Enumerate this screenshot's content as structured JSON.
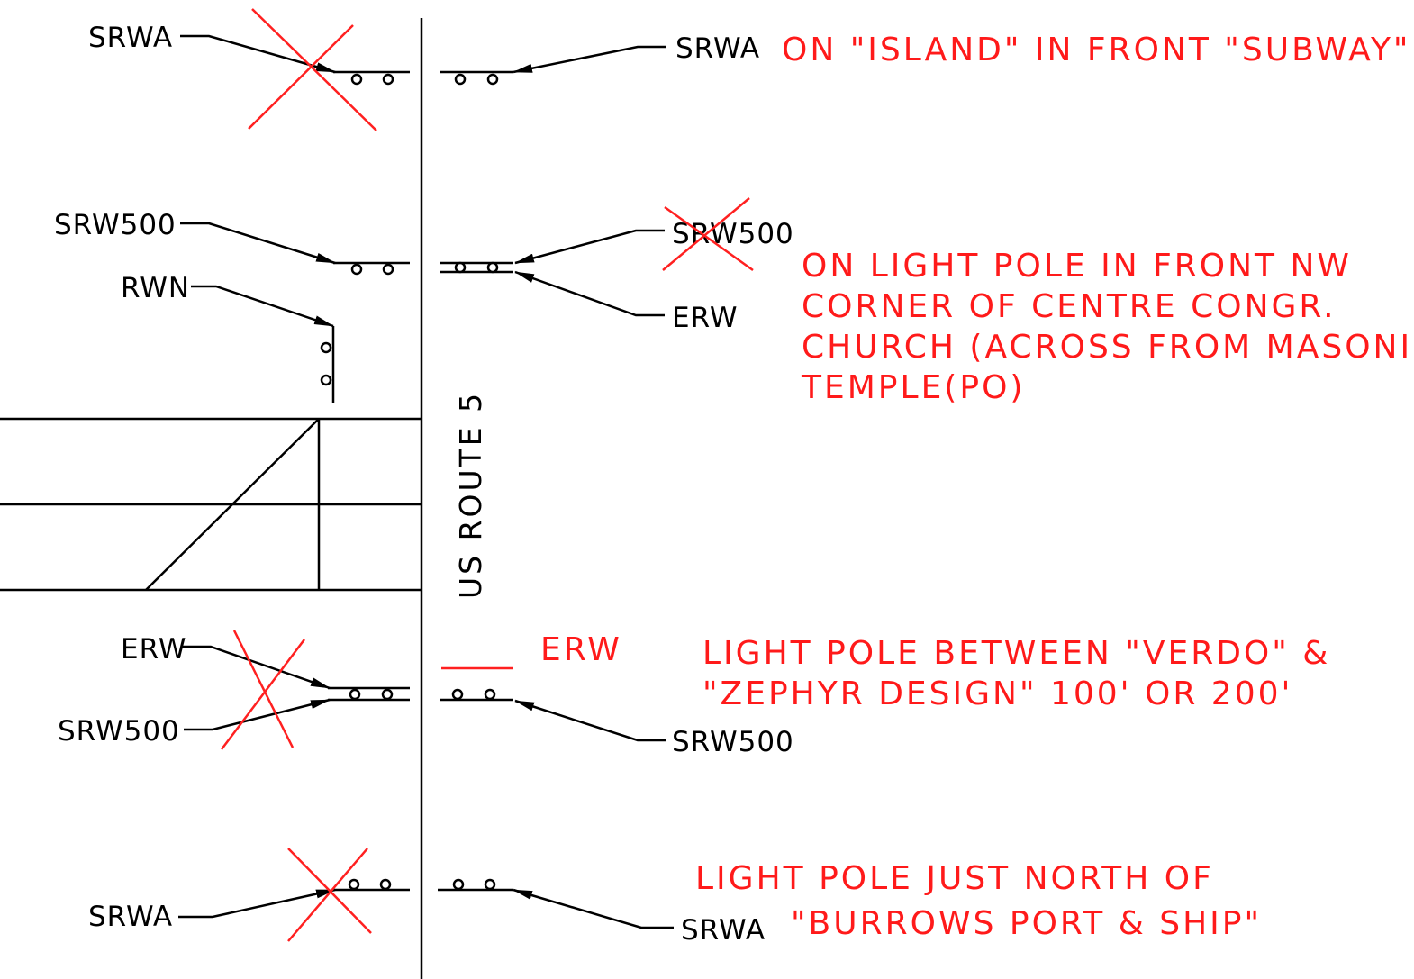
{
  "road_label": "US ROUTE 5",
  "colors": {
    "line": "#000000",
    "annotation": "#ff1a1a",
    "background": "#ffffff"
  },
  "signs": {
    "top_left": "SRWA",
    "top_right": "SRWA",
    "mid_left_1": "SRW500",
    "mid_left_2": "RWN",
    "mid_right_1": "SRW500",
    "mid_right_2": "ERW",
    "lower_left_1": "ERW",
    "lower_left_2": "SRW500",
    "lower_right_red": "ERW",
    "lower_right": "SRW500",
    "bottom_left": "SRWA",
    "bottom_right": "SRWA"
  },
  "notes": {
    "note1": "ON \"ISLAND\" IN FRONT \"SUBWAY\"",
    "note2_lines": [
      "ON LIGHT POLE IN FRONT NW",
      "CORNER OF CENTRE CONGR.",
      "CHURCH (ACROSS FROM MASONIC",
      "TEMPLE(PO)"
    ],
    "note3_lines": [
      "LIGHT POLE BETWEEN \"VERDO\" &",
      "\"ZEPHYR DESIGN\" 100' OR 200'"
    ],
    "note4_lines": [
      "LIGHT POLE JUST NORTH OF",
      "\"BURROWS PORT & SHIP\""
    ]
  }
}
